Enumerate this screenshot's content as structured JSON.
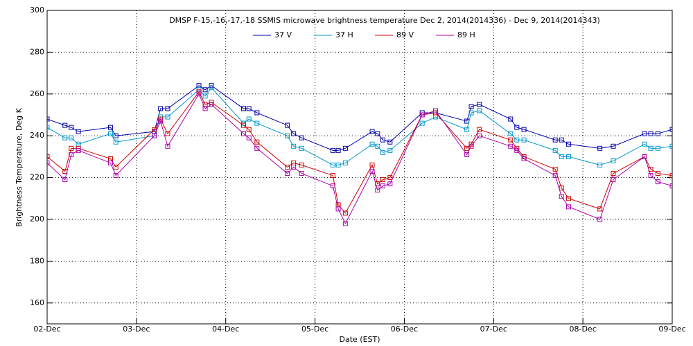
{
  "chart_data": {
    "type": "line",
    "title": "DMSP F-15,-16,-17,-18 SSMIS microwave brightness temperature Dec  2, 2014(2014336) - Dec  9, 2014(2014343)",
    "x_label": "Date (EST)",
    "y_label": "Brightness Temperature, Deg K",
    "x": [
      2.0,
      2.2,
      2.27,
      2.35,
      2.71,
      2.77,
      3.2,
      3.27,
      3.35,
      3.7,
      3.77,
      3.84,
      4.2,
      4.26,
      4.35,
      4.69,
      4.76,
      4.85,
      5.2,
      5.26,
      5.34,
      5.64,
      5.7,
      5.76,
      5.84,
      6.2,
      6.35,
      6.7,
      6.75,
      6.84,
      7.19,
      7.26,
      7.34,
      7.69,
      7.76,
      7.84,
      8.19,
      8.34,
      8.69,
      8.76,
      8.84,
      9.0
    ],
    "series": [
      {
        "name": "37 V",
        "color": "#0000aa",
        "values": [
          248,
          245,
          244,
          242,
          244,
          240,
          242,
          253,
          253,
          264,
          262,
          264,
          253,
          253,
          251,
          245,
          241,
          239,
          233,
          233,
          234,
          242,
          241,
          238,
          237,
          251,
          251,
          247,
          254,
          255,
          248,
          244,
          243,
          238,
          238,
          236,
          234,
          235,
          241,
          241,
          241,
          243
        ]
      },
      {
        "name": "37 H",
        "color": "#0099cc",
        "values": [
          244,
          239,
          239,
          236,
          241,
          237,
          240,
          249,
          249,
          262,
          259,
          263,
          246,
          248,
          246,
          240,
          235,
          234,
          226,
          226,
          227,
          236,
          235,
          232,
          233,
          246,
          249,
          243,
          251,
          252,
          241,
          238,
          238,
          233,
          230,
          230,
          226,
          228,
          236,
          234,
          234,
          235
        ]
      },
      {
        "name": "89 V",
        "color": "#cc0000",
        "values": [
          230,
          223,
          234,
          234,
          229,
          225,
          243,
          248,
          241,
          261,
          255,
          256,
          245,
          243,
          237,
          225,
          227,
          226,
          221,
          207,
          203,
          226,
          217,
          219,
          220,
          250,
          251,
          234,
          236,
          243,
          238,
          234,
          230,
          224,
          215,
          210,
          205,
          222,
          230,
          224,
          222,
          221
        ]
      },
      {
        "name": "89 H",
        "color": "#aa00aa",
        "values": [
          227,
          219,
          231,
          233,
          227,
          221,
          240,
          247,
          235,
          260,
          253,
          255,
          241,
          239,
          234,
          222,
          225,
          222,
          216,
          205,
          198,
          223,
          214,
          216,
          217,
          250,
          252,
          231,
          235,
          240,
          235,
          233,
          229,
          221,
          211,
          206,
          200,
          219,
          230,
          221,
          218,
          216
        ]
      }
    ],
    "xlim": [
      2,
      9
    ],
    "xticks": [
      {
        "value": 2,
        "label": "02-Dec"
      },
      {
        "value": 3,
        "label": "03-Dec"
      },
      {
        "value": 4,
        "label": "04-Dec"
      },
      {
        "value": 5,
        "label": "05-Dec"
      },
      {
        "value": 6,
        "label": "06-Dec"
      },
      {
        "value": 7,
        "label": "07-Dec"
      },
      {
        "value": 8,
        "label": "08-Dec"
      },
      {
        "value": 9,
        "label": "09-Dec"
      }
    ],
    "ylim": [
      150,
      300
    ],
    "yticks": [
      160,
      180,
      200,
      220,
      240,
      260,
      280,
      300
    ],
    "grid": true,
    "legend": "top"
  }
}
